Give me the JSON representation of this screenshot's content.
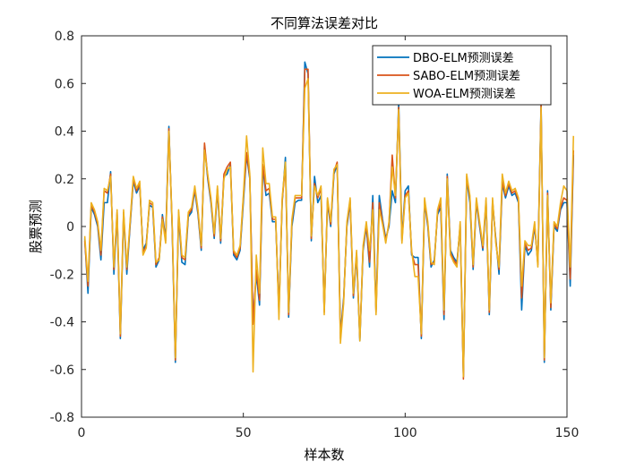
{
  "chart_data": {
    "type": "line",
    "title": "不同算法误差对比",
    "xlabel": "样本数",
    "ylabel": "股票预测",
    "xlim": [
      0,
      150
    ],
    "ylim": [
      -0.8,
      0.8
    ],
    "xticks": [
      0,
      50,
      100,
      150
    ],
    "yticks": [
      -0.8,
      -0.6,
      -0.4,
      -0.2,
      0,
      0.2,
      0.4,
      0.6,
      0.8
    ],
    "grid": false,
    "legend_position": "top-right",
    "series": [
      {
        "name": "DBO-ELM预测误差",
        "color": "#0072BD",
        "values": [
          -0.05,
          -0.28,
          0.08,
          0.05,
          0.0,
          -0.14,
          0.1,
          0.1,
          0.23,
          -0.2,
          0.05,
          -0.47,
          0.05,
          -0.2,
          0.0,
          0.19,
          0.14,
          0.17,
          -0.1,
          -0.07,
          0.09,
          0.08,
          -0.17,
          -0.14,
          0.05,
          -0.05,
          0.42,
          0.0,
          -0.57,
          0.05,
          -0.15,
          -0.16,
          0.04,
          0.06,
          0.15,
          0.05,
          -0.1,
          0.34,
          0.2,
          0.1,
          -0.05,
          0.15,
          -0.07,
          0.21,
          0.22,
          0.26,
          -0.12,
          -0.14,
          -0.1,
          0.1,
          0.3,
          0.2,
          -0.4,
          -0.2,
          -0.33,
          0.25,
          0.13,
          0.14,
          0.02,
          0.02,
          -0.35,
          0.1,
          0.29,
          -0.38,
          0.0,
          0.1,
          0.11,
          0.11,
          0.69,
          0.64,
          -0.06,
          0.21,
          0.1,
          0.13,
          -0.35,
          0.1,
          0.0,
          0.22,
          0.26,
          -0.45,
          -0.3,
          0.0,
          0.1,
          -0.3,
          -0.12,
          -0.48,
          -0.1,
          0.0,
          -0.17,
          0.13,
          -0.35,
          0.13,
          0.03,
          -0.05,
          0.0,
          0.15,
          0.1,
          0.52,
          -0.05,
          0.15,
          0.17,
          -0.12,
          -0.13,
          -0.13,
          -0.47,
          0.1,
          0.0,
          -0.17,
          -0.14,
          0.05,
          0.08,
          -0.39,
          0.22,
          -0.1,
          -0.13,
          -0.15,
          0.0,
          -0.63,
          0.2,
          0.1,
          -0.18,
          0.1,
          0.0,
          -0.1,
          0.1,
          -0.37,
          0.1,
          -0.05,
          -0.2,
          0.18,
          0.12,
          0.17,
          0.13,
          0.14,
          0.1,
          -0.35,
          -0.08,
          -0.12,
          -0.1,
          0.0,
          -0.15,
          0.52,
          -0.57,
          0.15,
          -0.35,
          0.0,
          -0.02,
          0.07,
          0.1,
          0.1,
          -0.25,
          0.3
        ]
      },
      {
        "name": "SABO-ELM预测误差",
        "color": "#D95319",
        "values": [
          -0.06,
          -0.25,
          0.09,
          0.06,
          0.01,
          -0.12,
          0.15,
          0.14,
          0.22,
          -0.18,
          0.06,
          -0.46,
          0.06,
          -0.18,
          0.01,
          0.2,
          0.15,
          0.18,
          -0.11,
          -0.08,
          0.1,
          0.09,
          -0.16,
          -0.13,
          0.04,
          -0.06,
          0.41,
          0.01,
          -0.56,
          0.06,
          -0.13,
          -0.14,
          0.05,
          0.07,
          0.16,
          0.06,
          -0.09,
          0.35,
          0.21,
          0.11,
          -0.04,
          0.16,
          -0.06,
          0.22,
          0.25,
          0.27,
          -0.11,
          -0.13,
          -0.09,
          0.12,
          0.31,
          0.21,
          -0.41,
          -0.18,
          -0.31,
          0.26,
          0.15,
          0.16,
          0.03,
          0.03,
          -0.36,
          0.11,
          0.26,
          -0.37,
          0.02,
          0.12,
          0.12,
          0.12,
          0.66,
          0.66,
          -0.05,
          0.18,
          0.12,
          0.16,
          -0.36,
          0.11,
          0.01,
          0.23,
          0.27,
          -0.47,
          -0.31,
          0.01,
          0.11,
          -0.29,
          -0.11,
          -0.47,
          -0.09,
          0.01,
          -0.15,
          0.1,
          -0.36,
          0.1,
          0.02,
          -0.06,
          0.01,
          0.3,
          0.12,
          0.5,
          -0.06,
          0.13,
          0.15,
          -0.11,
          -0.16,
          -0.16,
          -0.46,
          0.11,
          0.01,
          -0.16,
          -0.15,
          0.06,
          0.1,
          -0.37,
          0.21,
          -0.11,
          -0.14,
          -0.16,
          0.01,
          -0.64,
          0.21,
          0.12,
          -0.17,
          0.11,
          0.01,
          -0.09,
          0.11,
          -0.36,
          0.11,
          -0.06,
          -0.18,
          0.19,
          0.13,
          0.18,
          0.14,
          0.15,
          0.11,
          -0.3,
          -0.07,
          -0.1,
          -0.09,
          0.01,
          -0.16,
          0.51,
          -0.56,
          0.14,
          -0.34,
          0.01,
          -0.01,
          0.08,
          0.12,
          0.11,
          -0.22,
          0.32
        ]
      },
      {
        "name": "WOA-ELM预测误差",
        "color": "#EDB120",
        "values": [
          -0.04,
          -0.23,
          0.1,
          0.07,
          0.02,
          -0.1,
          0.16,
          0.15,
          0.21,
          -0.17,
          0.07,
          -0.45,
          0.07,
          -0.17,
          0.02,
          0.21,
          0.16,
          0.19,
          -0.12,
          -0.09,
          0.11,
          0.1,
          -0.15,
          -0.14,
          0.03,
          -0.07,
          0.4,
          0.02,
          -0.55,
          0.07,
          -0.12,
          -0.13,
          0.06,
          0.08,
          0.17,
          0.07,
          -0.08,
          0.32,
          0.22,
          0.12,
          -0.03,
          0.17,
          -0.05,
          0.2,
          0.24,
          0.25,
          -0.1,
          -0.12,
          -0.08,
          0.13,
          0.38,
          0.22,
          -0.61,
          -0.12,
          -0.28,
          0.33,
          0.18,
          0.18,
          0.04,
          0.04,
          -0.39,
          0.12,
          0.27,
          -0.36,
          0.03,
          0.13,
          0.13,
          0.13,
          0.58,
          0.62,
          -0.04,
          0.17,
          0.13,
          0.17,
          -0.37,
          0.12,
          0.02,
          0.24,
          0.26,
          -0.49,
          -0.32,
          0.02,
          0.12,
          -0.28,
          -0.1,
          -0.48,
          -0.08,
          0.02,
          -0.1,
          0.07,
          -0.37,
          0.07,
          0.01,
          -0.07,
          0.02,
          0.25,
          0.13,
          0.49,
          -0.07,
          0.12,
          0.14,
          -0.1,
          -0.21,
          -0.21,
          -0.45,
          0.12,
          0.02,
          -0.15,
          -0.16,
          0.07,
          0.12,
          -0.35,
          0.2,
          -0.12,
          -0.15,
          -0.17,
          0.02,
          -0.63,
          0.22,
          0.13,
          -0.16,
          0.12,
          0.02,
          -0.08,
          0.12,
          -0.35,
          0.12,
          -0.07,
          -0.17,
          0.22,
          0.14,
          0.19,
          0.15,
          0.16,
          0.12,
          -0.25,
          -0.06,
          -0.08,
          -0.08,
          0.02,
          -0.17,
          0.5,
          -0.55,
          0.13,
          -0.32,
          0.02,
          0.0,
          0.1,
          0.17,
          0.15,
          -0.17,
          0.38
        ]
      }
    ]
  }
}
